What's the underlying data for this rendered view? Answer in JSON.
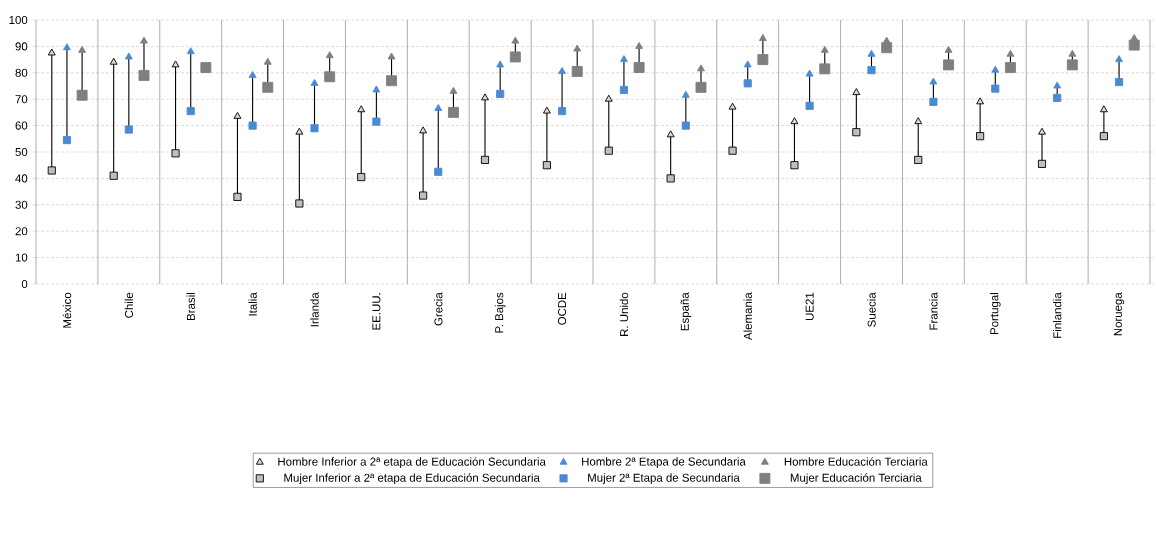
{
  "chart_data": {
    "type": "scatter",
    "categories": [
      "México",
      "Chile",
      "Brasil",
      "Italia",
      "Irlanda",
      "EE.UU.",
      "Grecia",
      "P. Bajos",
      "OCDE",
      "R. Unido",
      "España",
      "Alemania",
      "UE21",
      "Suecia",
      "Francia",
      "Portugal",
      "Finlandia",
      "Noruega"
    ],
    "series": [
      {
        "name": "Hombre Inferior a 2ª etapa de Educación Secundaria",
        "color": "#d9d9d9",
        "marker": "triangle",
        "values": [
          87.5,
          84,
          83,
          63.5,
          57.5,
          66,
          58,
          70.5,
          65.5,
          70,
          56.5,
          67,
          61.5,
          72.5,
          61.5,
          69,
          57.5,
          66
        ]
      },
      {
        "name": "Mujer Inferior a 2ª etapa de Educación Secundaria",
        "color": "#bfbfbf",
        "marker": "square",
        "values": [
          43,
          41,
          49.5,
          33,
          30.5,
          40.5,
          33.5,
          47,
          45,
          50.5,
          40,
          50.5,
          45,
          57.5,
          47,
          56,
          45.5,
          56
        ]
      },
      {
        "name": "Hombre 2ª Etapa de Secundaria",
        "color": "#4a8ad4",
        "marker": "triangle",
        "values": [
          89.5,
          86,
          88,
          79,
          76,
          73.5,
          66.5,
          83,
          80.5,
          85,
          71.5,
          83,
          79.5,
          87,
          76.5,
          81,
          75,
          85
        ]
      },
      {
        "name": "Mujer 2ª Etapa de Secundaria",
        "color": "#4a8ad4",
        "marker": "square",
        "values": [
          54.5,
          58.5,
          65.5,
          60,
          59,
          61.5,
          42.5,
          72,
          65.5,
          73.5,
          60,
          76,
          67.5,
          81,
          69,
          74,
          70.5,
          76.5
        ]
      },
      {
        "name": "Hombre Educación Terciaria",
        "color": "#7f7f7f",
        "marker": "triangle",
        "values": [
          88.5,
          92,
          null,
          84,
          86.5,
          86,
          73,
          92,
          89,
          90,
          81.5,
          93,
          88.5,
          92,
          88.5,
          87,
          87,
          93
        ]
      },
      {
        "name": "Mujer Educación Terciaria",
        "color": "#7f7f7f",
        "marker": "square",
        "values": [
          71.5,
          79,
          82,
          74.5,
          78.5,
          77,
          65,
          86,
          80.5,
          82,
          74.5,
          85,
          81.5,
          89.5,
          83,
          82,
          83,
          90.5
        ]
      }
    ],
    "ylim": [
      0,
      100
    ],
    "yticks": [
      0,
      10,
      20,
      30,
      40,
      50,
      60,
      70,
      80,
      90,
      100
    ],
    "grid": true,
    "legend": "bottom"
  }
}
